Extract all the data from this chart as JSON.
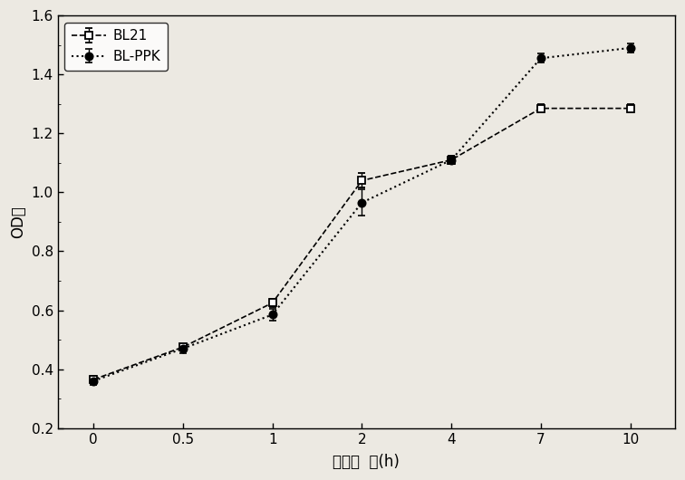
{
  "x_labels": [
    "0",
    "0.5",
    "1",
    "2",
    "4",
    "7",
    "10"
  ],
  "x_indices": [
    0,
    1,
    2,
    3,
    4,
    5,
    6
  ],
  "BL21_y": [
    0.365,
    0.475,
    0.625,
    1.04,
    1.11,
    1.285,
    1.285
  ],
  "BL21_yerr": [
    0.012,
    0.01,
    0.015,
    0.025,
    0.015,
    0.015,
    0.015
  ],
  "BLPPK_y": [
    0.36,
    0.47,
    0.585,
    0.965,
    1.11,
    1.455,
    1.49
  ],
  "BLPPK_yerr": [
    0.012,
    0.015,
    0.02,
    0.045,
    0.015,
    0.015,
    0.015
  ],
  "xlabel": "培养时  间(h)",
  "ylabel": "OD値",
  "ylim": [
    0.2,
    1.6
  ],
  "yticks": [
    0.2,
    0.4,
    0.6,
    0.8,
    1.0,
    1.2,
    1.4,
    1.6
  ],
  "legend_BL21": "BL21",
  "legend_BLPPK": "BL-PPK",
  "bg_color": "#ece9e2",
  "line_color": "#000000"
}
